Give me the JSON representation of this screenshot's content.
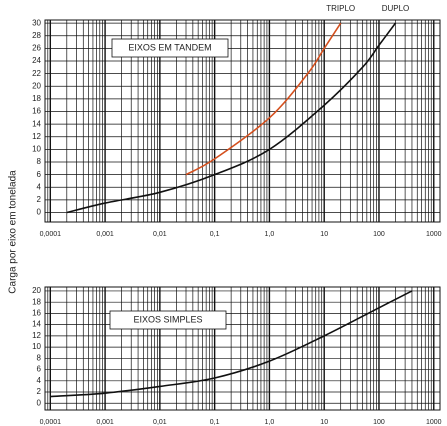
{
  "chart_data": [
    {
      "type": "line",
      "log_x": true,
      "grid": true,
      "ylabel": "Carga por eixo em tonelada",
      "annotation": "EIXOS EM TANDEM",
      "xlim": [
        8e-05,
        1300
      ],
      "ylim": [
        -1.5,
        30.5
      ],
      "xticks": [
        {
          "value": 0.0001,
          "label": "0,0001"
        },
        {
          "value": 0.001,
          "label": "0,001"
        },
        {
          "value": 0.01,
          "label": "0,01"
        },
        {
          "value": 0.1,
          "label": "0,1"
        },
        {
          "value": 1,
          "label": "1,0"
        },
        10,
        100,
        1000
      ],
      "yticks": [
        0,
        2,
        4,
        6,
        8,
        10,
        12,
        14,
        16,
        18,
        20,
        22,
        24,
        26,
        28,
        30
      ],
      "series": [
        {
          "name": "TRIPLO",
          "color": "#d4501e",
          "x": [
            0.03,
            0.1,
            1,
            5,
            10,
            20
          ],
          "values": [
            6,
            8.5,
            15,
            22,
            26,
            30
          ]
        },
        {
          "name": "DUPLO",
          "color": "#111111",
          "x": [
            0.0002,
            0.001,
            0.01,
            0.1,
            1,
            10,
            50,
            100,
            200
          ],
          "values": [
            0,
            1.5,
            3.2,
            6,
            10,
            17,
            23,
            26.5,
            30
          ]
        }
      ]
    },
    {
      "type": "line",
      "log_x": true,
      "grid": true,
      "annotation": "EIXOS SIMPLES",
      "xlim": [
        8e-05,
        1300
      ],
      "ylim": [
        -1.2,
        20.7
      ],
      "xticks": [
        {
          "value": 0.0001,
          "label": "0,0001"
        },
        {
          "value": 0.001,
          "label": "0,001"
        },
        {
          "value": 0.01,
          "label": "0,01"
        },
        {
          "value": 0.1,
          "label": "0,1"
        },
        {
          "value": 1,
          "label": "1,0"
        },
        10,
        100,
        1000
      ],
      "yticks": [
        0,
        2,
        4,
        6,
        8,
        10,
        12,
        14,
        16,
        18,
        20
      ],
      "series": [
        {
          "color": "#111111",
          "x": [
            0.0001,
            0.001,
            0.01,
            0.1,
            1,
            10,
            100,
            400
          ],
          "values": [
            1.2,
            1.8,
            3,
            4.5,
            7.5,
            12,
            17,
            20
          ]
        }
      ]
    }
  ]
}
